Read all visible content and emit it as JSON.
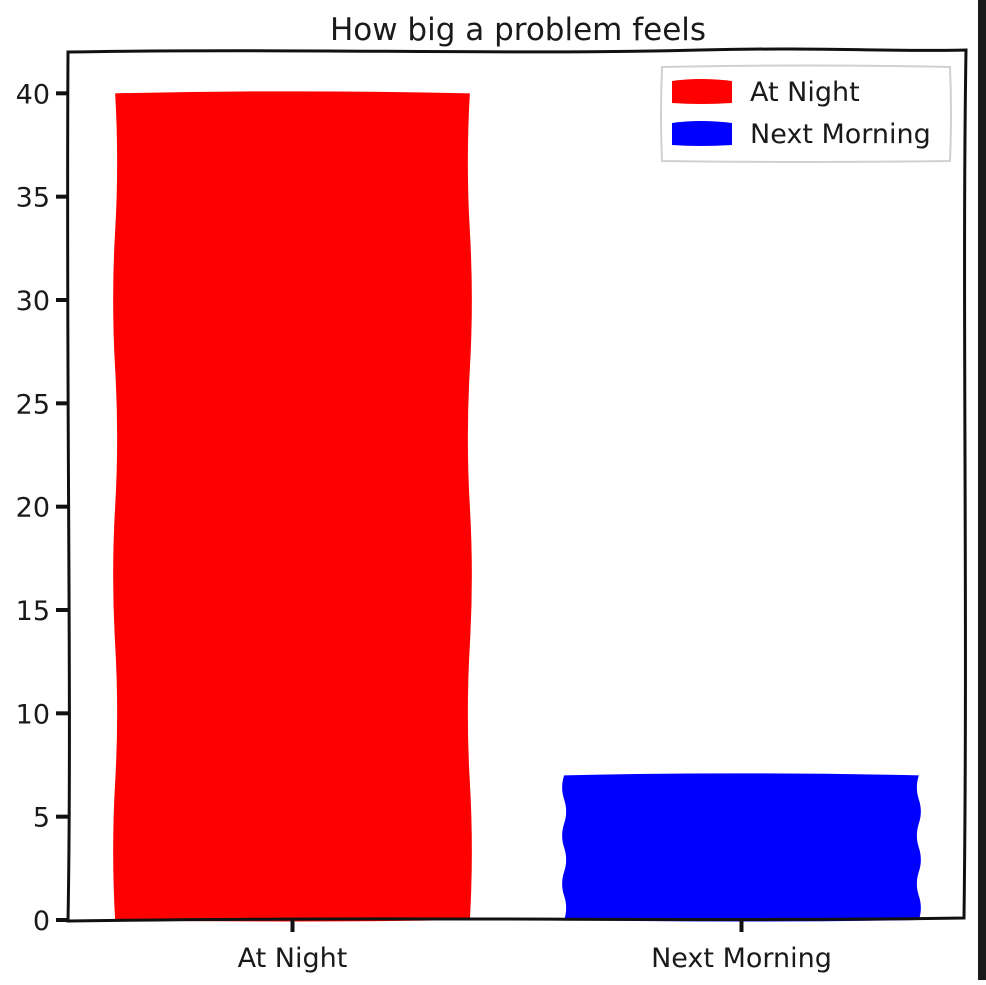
{
  "chart_data": {
    "type": "bar",
    "title": "How big a problem feels",
    "xlabel": "",
    "ylabel": "",
    "categories": [
      "At Night",
      "Next Morning"
    ],
    "values": [
      40,
      7
    ],
    "colors": [
      "#ff0000",
      "#0000ff"
    ],
    "ylim": [
      0,
      42
    ],
    "yticks": [
      0,
      5,
      10,
      15,
      20,
      25,
      30,
      35,
      40
    ],
    "legend": {
      "placement": "top-right",
      "entries": [
        {
          "label": "At Night",
          "color": "#ff0000"
        },
        {
          "label": "Next Morning",
          "color": "#0000ff"
        }
      ]
    },
    "grid": false,
    "style": "xkcd"
  }
}
